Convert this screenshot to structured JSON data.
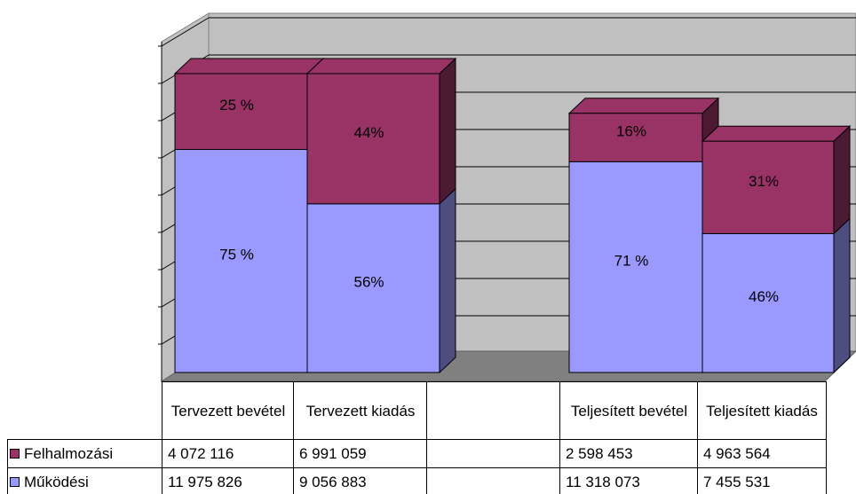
{
  "chart_data": {
    "type": "bar",
    "stacked": true,
    "three_d": true,
    "data_table": true,
    "grid": true,
    "categories": [
      "Tervezett bevétel",
      "Tervezett kiadás",
      null,
      "Teljesített bevétel",
      "Teljesített kiadás"
    ],
    "series": [
      {
        "name": "Felhalmozási",
        "color": "#993366",
        "values": [
          4072116,
          6991059,
          null,
          2598453,
          4963564
        ],
        "value_labels": [
          "4 072 116",
          "6 991 059",
          null,
          "2 598 453",
          "4 963 564"
        ],
        "percent": [
          25,
          44,
          null,
          16,
          31
        ],
        "percent_labels": [
          "25 %",
          "44%",
          null,
          "16%",
          "31%"
        ]
      },
      {
        "name": "Működési",
        "color": "#9999ff",
        "values": [
          11975826,
          9056883,
          null,
          11318073,
          7455531
        ],
        "value_labels": [
          "11 975 826",
          "9 056 883",
          null,
          "11 318 073",
          "7 455 531"
        ],
        "percent": [
          75,
          56,
          null,
          71,
          46
        ],
        "percent_labels": [
          "75 %",
          "56%",
          null,
          "71 %",
          "46%"
        ]
      }
    ],
    "ylim": [
      0,
      18000000
    ],
    "yticks": [
      0,
      2000000,
      4000000,
      6000000,
      8000000,
      10000000,
      12000000,
      14000000,
      16000000,
      18000000
    ]
  }
}
